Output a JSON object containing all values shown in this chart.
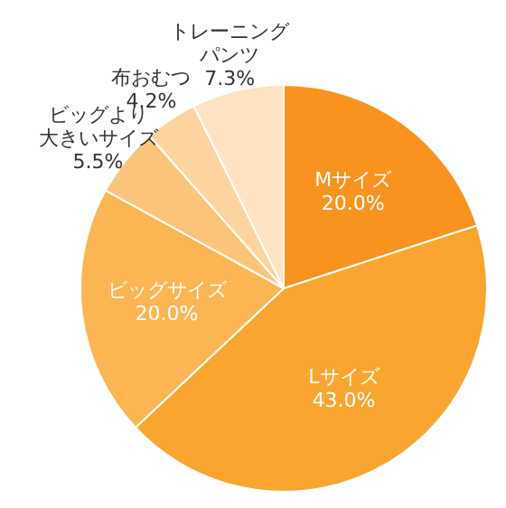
{
  "chart_data": {
    "type": "pie",
    "categories": [
      "Mサイズ",
      "Lサイズ",
      "ビッグサイズ",
      "ビッグより大きいサイズ",
      "布おむつ",
      "トレーニングパンツ"
    ],
    "values": [
      20.0,
      43.0,
      20.0,
      5.5,
      4.2,
      7.3
    ],
    "value_labels": [
      "20.0%",
      "43.0%",
      "20.0%",
      "5.5%",
      "4.2%",
      "7.3%"
    ],
    "colors": [
      "#f7931e",
      "#f9a530",
      "#fbb552",
      "#fcc47a",
      "#fdd3a0",
      "#fee2c2"
    ],
    "data_labels": true,
    "legend": false
  }
}
